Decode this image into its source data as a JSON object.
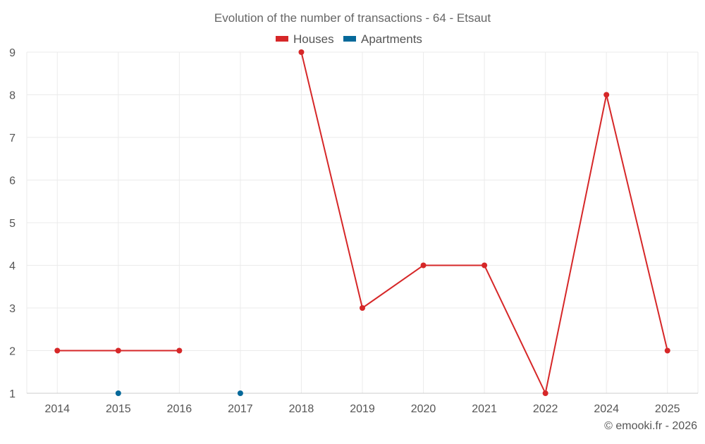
{
  "chart_data": {
    "type": "line",
    "title": "Evolution of the number of transactions - 64 - Etsaut",
    "categories": [
      "2014",
      "2015",
      "2016",
      "2017",
      "2018",
      "2019",
      "2020",
      "2021",
      "2022",
      "2024",
      "2025"
    ],
    "series": [
      {
        "name": "Houses",
        "color": "#d62728",
        "values": [
          2,
          2,
          2,
          null,
          9,
          3,
          4,
          4,
          1,
          8,
          2
        ]
      },
      {
        "name": "Apartments",
        "color": "#06699a",
        "values": [
          null,
          1,
          null,
          1,
          null,
          null,
          null,
          null,
          null,
          null,
          null
        ]
      }
    ],
    "ylim": [
      1,
      9
    ],
    "yticks": [
      1,
      2,
      3,
      4,
      5,
      6,
      7,
      8,
      9
    ],
    "grid": true,
    "legend_position": "top-center"
  },
  "credit": "© emooki.fr - 2026"
}
